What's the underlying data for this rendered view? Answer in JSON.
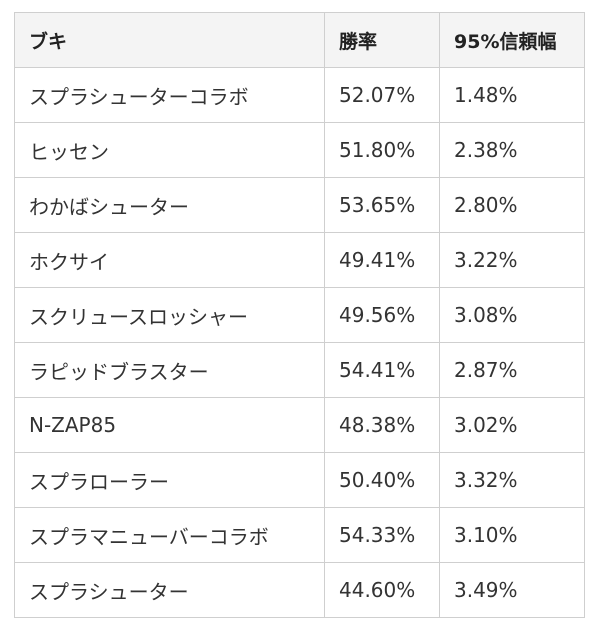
{
  "table": {
    "headers": [
      "ブキ",
      "勝率",
      "95%信頼幅"
    ],
    "rows": [
      [
        "スプラシューターコラボ",
        "52.07%",
        "1.48%"
      ],
      [
        "ヒッセン",
        "51.80%",
        "2.38%"
      ],
      [
        "わかばシューター",
        "53.65%",
        "2.80%"
      ],
      [
        "ホクサイ",
        "49.41%",
        "3.22%"
      ],
      [
        "スクリュースロッシャー",
        "49.56%",
        "3.08%"
      ],
      [
        "ラピッドブラスター",
        "54.41%",
        "2.87%"
      ],
      [
        "N-ZAP85",
        "48.38%",
        "3.02%"
      ],
      [
        "スプラローラー",
        "50.40%",
        "3.32%"
      ],
      [
        "スプラマニューバーコラボ",
        "54.33%",
        "3.10%"
      ],
      [
        "スプラシューター",
        "44.60%",
        "3.49%"
      ]
    ]
  }
}
